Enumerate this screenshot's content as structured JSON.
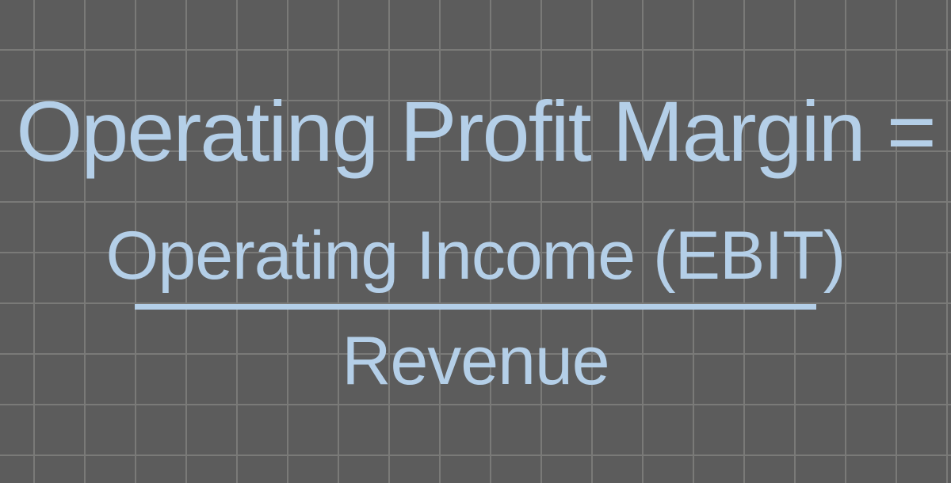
{
  "formula": {
    "title": "Operating Profit Margin =",
    "numerator": "Operating Income (EBIT)",
    "denominator": "Revenue",
    "text_color": "#b4cfe8",
    "title_fontsize": 108,
    "fraction_fontsize": 86,
    "line_width": 860,
    "line_color": "#b4cfe8",
    "line_thickness": 7
  },
  "background": {
    "base_color": "#5c5c5c",
    "grid_line_color": "#7a7a78",
    "grid_line_color_light": "#888885",
    "grid_size": 64,
    "grid_line_width": 2
  }
}
